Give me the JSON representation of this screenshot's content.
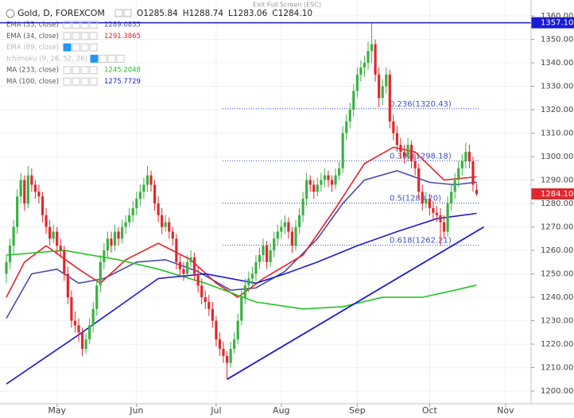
{
  "ui": {
    "exit_fullscreen": "Exit Full Screen (ESC)"
  },
  "chart_data": {
    "type": "candlestick",
    "symbol": "Gold, D, FOREXCOM",
    "ohlc_names": [
      "O",
      "H",
      "L",
      "C"
    ],
    "last_label": "1284.10",
    "up_color": "#3cb043",
    "down_color": "#e0282e",
    "categories": [
      null,
      null,
      null,
      null,
      null,
      null,
      null,
      null,
      null,
      null,
      null,
      null,
      null,
      null,
      "May",
      null,
      null,
      null,
      null,
      null,
      null,
      null,
      null,
      null,
      null,
      null,
      null,
      null,
      null,
      null,
      null,
      null,
      null,
      null,
      null,
      null,
      "Jun",
      null,
      null,
      null,
      null,
      null,
      null,
      null,
      null,
      null,
      null,
      null,
      null,
      null,
      null,
      null,
      null,
      null,
      null,
      null,
      null,
      null,
      "Jul",
      null,
      null,
      null,
      null,
      null,
      null,
      null,
      null,
      null,
      null,
      null,
      null,
      null,
      null,
      null,
      null,
      null,
      "Aug",
      null,
      null,
      null,
      null,
      null,
      null,
      null,
      null,
      null,
      null,
      null,
      null,
      null,
      null,
      null,
      null,
      null,
      null,
      null,
      null,
      "Sep",
      null,
      null,
      null,
      null,
      null,
      null,
      null,
      null,
      null,
      null,
      null,
      null,
      null,
      null,
      null,
      null,
      null,
      null,
      null,
      "Oct",
      null,
      null,
      null,
      null,
      null,
      null,
      null,
      null,
      null,
      null,
      null,
      null,
      null,
      null,
      null,
      null,
      null,
      null,
      null,
      null,
      "Nov"
    ],
    "ohlc": [
      [
        1250,
        1258,
        1246,
        1255
      ],
      [
        1255,
        1265,
        1252,
        1262
      ],
      [
        1262,
        1273,
        1258,
        1270
      ],
      [
        1270,
        1286,
        1267,
        1283
      ],
      [
        1283,
        1293,
        1280,
        1290
      ],
      [
        1290,
        1292,
        1277,
        1280
      ],
      [
        1280,
        1296,
        1278,
        1292
      ],
      [
        1292,
        1295,
        1285,
        1288
      ],
      [
        1288,
        1290,
        1282,
        1285
      ],
      [
        1285,
        1288,
        1280,
        1283
      ],
      [
        1283,
        1285,
        1272,
        1275
      ],
      [
        1275,
        1278,
        1267,
        1270
      ],
      [
        1270,
        1273,
        1262,
        1265
      ],
      [
        1265,
        1271,
        1263,
        1268
      ],
      [
        1268,
        1270,
        1259,
        1262
      ],
      [
        1262,
        1265,
        1257,
        1260
      ],
      [
        1260,
        1262,
        1247,
        1250
      ],
      [
        1250,
        1253,
        1237,
        1240
      ],
      [
        1240,
        1243,
        1227,
        1230
      ],
      [
        1230,
        1234,
        1225,
        1228
      ],
      [
        1228,
        1231,
        1221,
        1225
      ],
      [
        1225,
        1227,
        1215,
        1218
      ],
      [
        1218,
        1225,
        1216,
        1222
      ],
      [
        1222,
        1231,
        1220,
        1228
      ],
      [
        1228,
        1238,
        1225,
        1235
      ],
      [
        1235,
        1248,
        1232,
        1245
      ],
      [
        1245,
        1258,
        1242,
        1255
      ],
      [
        1255,
        1263,
        1252,
        1260
      ],
      [
        1260,
        1268,
        1257,
        1265
      ],
      [
        1265,
        1268,
        1259,
        1262
      ],
      [
        1262,
        1271,
        1260,
        1268
      ],
      [
        1268,
        1270,
        1262,
        1265
      ],
      [
        1265,
        1273,
        1263,
        1270
      ],
      [
        1270,
        1275,
        1267,
        1272
      ],
      [
        1272,
        1278,
        1270,
        1275
      ],
      [
        1275,
        1281,
        1272,
        1278
      ],
      [
        1278,
        1285,
        1275,
        1282
      ],
      [
        1282,
        1288,
        1279,
        1285
      ],
      [
        1285,
        1291,
        1282,
        1288
      ],
      [
        1288,
        1296,
        1285,
        1292
      ],
      [
        1292,
        1294,
        1285,
        1288
      ],
      [
        1288,
        1290,
        1277,
        1280
      ],
      [
        1280,
        1283,
        1272,
        1275
      ],
      [
        1275,
        1278,
        1267,
        1270
      ],
      [
        1270,
        1275,
        1268,
        1272
      ],
      [
        1272,
        1274,
        1265,
        1268
      ],
      [
        1268,
        1270,
        1262,
        1265
      ],
      [
        1265,
        1267,
        1252,
        1255
      ],
      [
        1255,
        1258,
        1249,
        1252
      ],
      [
        1252,
        1255,
        1247,
        1250
      ],
      [
        1250,
        1258,
        1248,
        1255
      ],
      [
        1255,
        1260,
        1253,
        1257
      ],
      [
        1257,
        1259,
        1247,
        1250
      ],
      [
        1250,
        1253,
        1242,
        1245
      ],
      [
        1245,
        1248,
        1237,
        1240
      ],
      [
        1240,
        1243,
        1235,
        1238
      ],
      [
        1238,
        1241,
        1232,
        1235
      ],
      [
        1235,
        1238,
        1227,
        1230
      ],
      [
        1230,
        1232,
        1219,
        1222
      ],
      [
        1222,
        1225,
        1215,
        1218
      ],
      [
        1218,
        1221,
        1212,
        1215
      ],
      [
        1215,
        1217,
        1205,
        1212
      ],
      [
        1212,
        1221,
        1210,
        1218
      ],
      [
        1218,
        1225,
        1216,
        1222
      ],
      [
        1222,
        1233,
        1220,
        1230
      ],
      [
        1230,
        1243,
        1228,
        1240
      ],
      [
        1240,
        1248,
        1237,
        1245
      ],
      [
        1245,
        1251,
        1242,
        1248
      ],
      [
        1248,
        1253,
        1245,
        1250
      ],
      [
        1250,
        1258,
        1247,
        1255
      ],
      [
        1255,
        1261,
        1252,
        1258
      ],
      [
        1258,
        1265,
        1255,
        1262
      ],
      [
        1262,
        1264,
        1252,
        1255
      ],
      [
        1255,
        1263,
        1253,
        1260
      ],
      [
        1260,
        1268,
        1257,
        1265
      ],
      [
        1265,
        1271,
        1262,
        1268
      ],
      [
        1268,
        1273,
        1265,
        1270
      ],
      [
        1270,
        1275,
        1267,
        1272
      ],
      [
        1272,
        1274,
        1265,
        1268
      ],
      [
        1268,
        1270,
        1259,
        1262
      ],
      [
        1262,
        1273,
        1260,
        1270
      ],
      [
        1270,
        1278,
        1267,
        1275
      ],
      [
        1275,
        1285,
        1272,
        1282
      ],
      [
        1282,
        1293,
        1279,
        1290
      ],
      [
        1290,
        1292,
        1285,
        1288
      ],
      [
        1288,
        1290,
        1282,
        1285
      ],
      [
        1285,
        1291,
        1283,
        1288
      ],
      [
        1288,
        1293,
        1285,
        1290
      ],
      [
        1290,
        1295,
        1287,
        1292
      ],
      [
        1292,
        1294,
        1287,
        1290
      ],
      [
        1290,
        1292,
        1285,
        1288
      ],
      [
        1288,
        1295,
        1286,
        1292
      ],
      [
        1292,
        1298,
        1290,
        1295
      ],
      [
        1295,
        1313,
        1293,
        1310
      ],
      [
        1310,
        1318,
        1307,
        1315
      ],
      [
        1315,
        1323,
        1312,
        1320
      ],
      [
        1320,
        1331,
        1317,
        1328
      ],
      [
        1328,
        1338,
        1325,
        1335
      ],
      [
        1335,
        1341,
        1332,
        1338
      ],
      [
        1338,
        1343,
        1334,
        1340
      ],
      [
        1340,
        1349,
        1337,
        1345
      ],
      [
        1345,
        1357.1,
        1340,
        1348
      ],
      [
        1348,
        1350,
        1332,
        1335
      ],
      [
        1335,
        1338,
        1321,
        1325
      ],
      [
        1325,
        1333,
        1322,
        1330
      ],
      [
        1330,
        1338,
        1327,
        1335
      ],
      [
        1335,
        1337,
        1312,
        1315
      ],
      [
        1315,
        1318,
        1307,
        1310
      ],
      [
        1310,
        1313,
        1302,
        1305
      ],
      [
        1305,
        1308,
        1299,
        1302
      ],
      [
        1302,
        1305,
        1297,
        1300
      ],
      [
        1300,
        1308,
        1298,
        1305
      ],
      [
        1305,
        1307,
        1295,
        1298
      ],
      [
        1298,
        1301,
        1292,
        1295
      ],
      [
        1295,
        1297,
        1282,
        1285
      ],
      [
        1285,
        1288,
        1277,
        1280
      ],
      [
        1280,
        1285,
        1278,
        1282
      ],
      [
        1282,
        1284,
        1275,
        1278
      ],
      [
        1278,
        1281,
        1273,
        1276
      ],
      [
        1276,
        1279,
        1272,
        1275
      ],
      [
        1275,
        1278,
        1262,
        1272
      ],
      [
        1272,
        1275,
        1265,
        1268
      ],
      [
        1268,
        1283,
        1266,
        1280
      ],
      [
        1280,
        1288,
        1277,
        1285
      ],
      [
        1285,
        1293,
        1282,
        1290
      ],
      [
        1290,
        1298,
        1287,
        1295
      ],
      [
        1295,
        1301,
        1292,
        1298
      ],
      [
        1298,
        1306,
        1295,
        1302
      ],
      [
        1302,
        1305,
        1295,
        1298
      ],
      [
        1298,
        1300,
        1285,
        1288
      ],
      [
        1285.84,
        1288.74,
        1283.06,
        1284.1
      ],
      null,
      null,
      null,
      null,
      null,
      null,
      null
    ],
    "series": [
      {
        "name": "EMA (55, close)",
        "color": "#4b4ba6",
        "legend_value": 1289.0855,
        "x": [
          0,
          7,
          14,
          20,
          27,
          36,
          44,
          53,
          62,
          69,
          77,
          86,
          93,
          99,
          108,
          117,
          124,
          130
        ],
        "values": [
          1231,
          1250,
          1252,
          1246,
          1248,
          1255,
          1256,
          1251,
          1243,
          1244,
          1251,
          1265,
          1280,
          1290,
          1294,
          1289,
          1288,
          1289.09
        ]
      },
      {
        "name": "EMA (34, close)",
        "color": "#e8212a",
        "legend_value": 1291.3865,
        "x": [
          0,
          5,
          11,
          20,
          26,
          33,
          42,
          51,
          58,
          64,
          71,
          82,
          91,
          99,
          107,
          113,
          121,
          130
        ],
        "values": [
          1240,
          1255,
          1262,
          1252,
          1246,
          1256,
          1263,
          1256,
          1246,
          1240,
          1248,
          1258,
          1278,
          1297,
          1304,
          1302,
          1290,
          1291.39
        ]
      },
      {
        "name": "EMA (89, close)",
        "color": "#bbbbbb",
        "visible": false
      },
      {
        "name": "Ichimoku (9, 26, 52, 26)",
        "color": "#bbbbbb",
        "visible": false
      },
      {
        "name": "MA (233, close)",
        "color": "#22c522",
        "legend_value": 1245.2048,
        "x": [
          0,
          16,
          31,
          42,
          55,
          69,
          82,
          93,
          104,
          115,
          124,
          130
        ],
        "values": [
          1258,
          1260,
          1256,
          1252,
          1246,
          1238,
          1235,
          1236,
          1240,
          1240,
          1243,
          1245.2
        ]
      },
      {
        "name": "MA (100, close)",
        "color": "#1a1ad4",
        "legend_value": 1275.7729,
        "x": [
          0,
          20,
          42,
          55,
          69,
          77,
          86,
          97,
          108,
          119,
          130
        ],
        "values": [
          1203,
          1224,
          1248,
          1250,
          1246,
          1250,
          1255,
          1262,
          1268,
          1273.5,
          1275.77
        ]
      }
    ],
    "fib_levels": [
      {
        "label": "0.236(1320.43)",
        "value": 1320.43
      },
      {
        "label": "0.382(1298.18)",
        "value": 1298.18
      },
      {
        "label": "0.5(1280.20)",
        "value": 1280.2
      },
      {
        "label": "0.618(1262.21)",
        "value": 1262.21
      }
    ],
    "fib_color": "#3f4fc8",
    "trend_line": {
      "color": "#1a1ad4",
      "x": [
        61,
        132
      ],
      "values": [
        1205,
        1270
      ]
    },
    "level": {
      "color": "#1a1ad4",
      "value": 1357.1,
      "label": "1357.10"
    },
    "ylim": [
      1194.6,
      1366.8
    ],
    "yticks": [
      {
        "value": 1200,
        "label": "1200.00"
      },
      {
        "value": 1210,
        "label": "1210.00"
      },
      {
        "value": 1220,
        "label": "1220.00"
      },
      {
        "value": 1230,
        "label": "1230.00"
      },
      {
        "value": 1240,
        "label": "1240.00"
      },
      {
        "value": 1250,
        "label": "1250.00"
      },
      {
        "value": 1260,
        "label": "1260.00"
      },
      {
        "value": 1270,
        "label": "1270.00"
      },
      {
        "value": 1280,
        "label": "1280.00"
      },
      {
        "value": 1290,
        "label": "1290.00"
      },
      {
        "value": 1300,
        "label": "1300.00"
      },
      {
        "value": 1310,
        "label": "1310.00"
      },
      {
        "value": 1320,
        "label": "1320.00"
      },
      {
        "value": 1330,
        "label": "1330.00"
      },
      {
        "value": 1340,
        "label": "1340.00"
      },
      {
        "value": 1350,
        "label": "1350.00"
      },
      {
        "value": 1360,
        "label": "1360.00"
      }
    ],
    "grid": true
  }
}
